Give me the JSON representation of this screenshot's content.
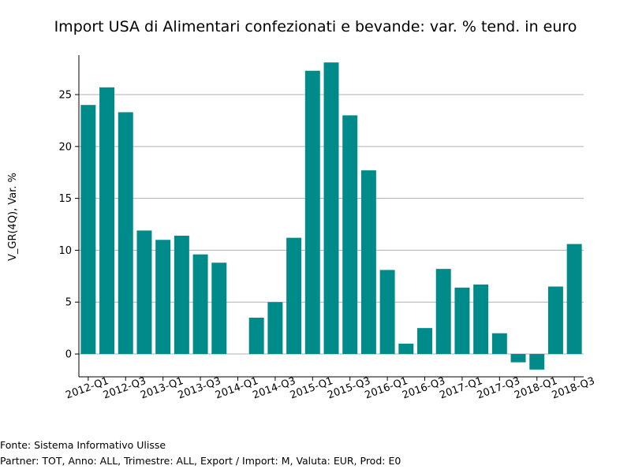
{
  "chart_data": {
    "type": "bar",
    "title": "Import USA di Alimentari confezionati e bevande: var. % tend. in euro",
    "xlabel": "",
    "ylabel": "V_GR(4Q), Var. %",
    "ylim": [
      -2.2,
      28.8
    ],
    "yticks": [
      0,
      5,
      10,
      15,
      20,
      25
    ],
    "grid": "y",
    "bar_color": "#008b8b",
    "categories": [
      "2012-Q1",
      "2012-Q2",
      "2012-Q3",
      "2012-Q4",
      "2013-Q1",
      "2013-Q2",
      "2013-Q3",
      "2013-Q4",
      "2014-Q1",
      "2014-Q2",
      "2014-Q3",
      "2014-Q4",
      "2015-Q1",
      "2015-Q2",
      "2015-Q3",
      "2015-Q4",
      "2016-Q1",
      "2016-Q2",
      "2016-Q3",
      "2016-Q4",
      "2017-Q1",
      "2017-Q2",
      "2017-Q3",
      "2017-Q4",
      "2018-Q1",
      "2018-Q2",
      "2018-Q3"
    ],
    "tick_labels": [
      "2012-Q1",
      "2012-Q3",
      "2013-Q1",
      "2013-Q3",
      "2014-Q1",
      "2014-Q3",
      "2015-Q1",
      "2015-Q3",
      "2016-Q1",
      "2016-Q3",
      "2017-Q1",
      "2017-Q3",
      "2018-Q1",
      "2018-Q3"
    ],
    "values": [
      24.0,
      25.7,
      23.3,
      11.9,
      11.0,
      11.4,
      9.6,
      8.8,
      null,
      3.5,
      5.0,
      11.2,
      27.3,
      28.1,
      23.0,
      17.7,
      8.1,
      1.0,
      2.5,
      8.2,
      6.4,
      6.7,
      2.0,
      -0.8,
      -1.5,
      6.5,
      10.6
    ]
  },
  "footer": {
    "source": "Fonte: Sistema Informativo Ulisse",
    "meta": "Partner: TOT, Anno: ALL, Trimestre: ALL, Export / Import: M, Valuta: EUR, Prod: E0"
  }
}
